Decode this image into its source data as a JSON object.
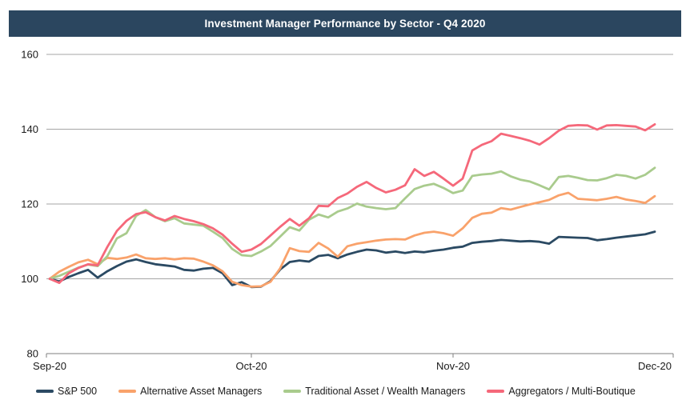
{
  "header": {
    "title": "Investment Manager Performance by Sector - Q4 2020",
    "background_color": "#2b465f",
    "text_color": "#ffffff"
  },
  "chart_data": {
    "type": "line",
    "title": "Investment Manager Performance by Sector - Q4 2020",
    "grid": true,
    "legend_position": "bottom",
    "x_axis": {
      "tick_labels": [
        "Sep-20",
        "Oct-20",
        "Nov-20",
        "Dec-20"
      ],
      "tick_indices": [
        0,
        21,
        42,
        63
      ]
    },
    "y_axis": {
      "min": 80,
      "max": 160,
      "ticks": [
        80,
        100,
        120,
        140,
        160
      ],
      "tick_labels": [
        "80",
        "100",
        "120",
        "140",
        "160"
      ]
    },
    "gridline_color": "#a6a6a6",
    "axis_color": "#7f7f7f",
    "label_color": "#1a1a1a",
    "series": [
      {
        "name": "S&P 500",
        "color": "#2b4a63",
        "values": [
          100,
          99.3,
          100.5,
          101.5,
          102.4,
          100.3,
          102,
          103.4,
          104.6,
          105.2,
          104.5,
          103.9,
          103.6,
          103.3,
          102.4,
          102.2,
          102.7,
          102.9,
          101.5,
          98.3,
          99.1,
          97.8,
          97.9,
          99.4,
          102.5,
          104.5,
          104.9,
          104.6,
          106.1,
          106.4,
          105.5,
          106.5,
          107.2,
          107.8,
          107.6,
          107,
          107.3,
          106.9,
          107.3,
          107.1,
          107.5,
          107.8,
          108.3,
          108.6,
          109.6,
          109.9,
          110.1,
          110.4,
          110.2,
          110,
          110.1,
          109.9,
          109.4,
          111.2,
          111.1,
          111,
          110.9,
          110.3,
          110.6,
          111,
          111.3,
          111.6,
          111.9,
          112.6
        ]
      },
      {
        "name": "Alternative Asset Managers",
        "color": "#f9a26b",
        "values": [
          100,
          101.9,
          103.2,
          104.4,
          105.1,
          103.9,
          105.6,
          105.3,
          105.7,
          106.5,
          105.5,
          105.3,
          105.5,
          105.2,
          105.5,
          105.4,
          104.6,
          103.6,
          102,
          99.2,
          98.3,
          97.9,
          98,
          99.2,
          102.8,
          108.2,
          107.4,
          107.2,
          109.6,
          108.1,
          105.9,
          108.7,
          109.4,
          109.8,
          110.2,
          110.5,
          110.6,
          110.5,
          111.6,
          112.3,
          112.6,
          112.2,
          111.5,
          113.5,
          116.3,
          117.4,
          117.7,
          118.9,
          118.5,
          119.2,
          119.9,
          120.5,
          121.1,
          122.3,
          123,
          121.4,
          121.2,
          121,
          121.4,
          121.9,
          121.2,
          120.8,
          120.3,
          122.1
        ]
      },
      {
        "name": "Traditional Asset / Wealth Managers",
        "color": "#a9cb8d",
        "values": [
          100,
          100.8,
          101.9,
          103,
          103.8,
          103.4,
          106,
          110.8,
          112.2,
          116.8,
          118.4,
          116.5,
          115.4,
          116.2,
          114.8,
          114.5,
          114.2,
          112.6,
          110.9,
          108,
          106.3,
          106.1,
          107.3,
          108.8,
          111.3,
          113.8,
          112.9,
          115.8,
          117.2,
          116.4,
          118,
          118.8,
          120.1,
          119.3,
          118.9,
          118.6,
          118.9,
          121.5,
          124,
          124.9,
          125.4,
          124.3,
          122.9,
          123.6,
          127.5,
          127.9,
          128.1,
          128.7,
          127.4,
          126.5,
          126,
          125,
          123.9,
          127.2,
          127.5,
          127,
          126.4,
          126.3,
          126.9,
          127.8,
          127.5,
          126.8,
          127.8,
          129.7
        ]
      },
      {
        "name": "Aggregators / Multi-Boutique",
        "color": "#f5687a",
        "values": [
          100,
          98.9,
          101.5,
          102.9,
          103.9,
          103.6,
          108.5,
          112.8,
          115.5,
          117.3,
          117.8,
          116.5,
          115.6,
          116.8,
          116,
          115.4,
          114.6,
          113.5,
          111.8,
          109.4,
          107.2,
          107.8,
          109.3,
          111.6,
          113.9,
          116,
          114.2,
          116.2,
          119.5,
          119.4,
          121.6,
          122.8,
          124.6,
          125.9,
          124.3,
          123.1,
          123.8,
          125,
          129.3,
          127.5,
          128.6,
          126.8,
          124.9,
          126.8,
          134.3,
          135.8,
          136.8,
          138.8,
          138.2,
          137.6,
          136.9,
          135.9,
          137.6,
          139.6,
          140.9,
          141.1,
          141,
          139.9,
          141,
          141.1,
          140.9,
          140.7,
          139.7,
          141.3
        ]
      }
    ]
  }
}
